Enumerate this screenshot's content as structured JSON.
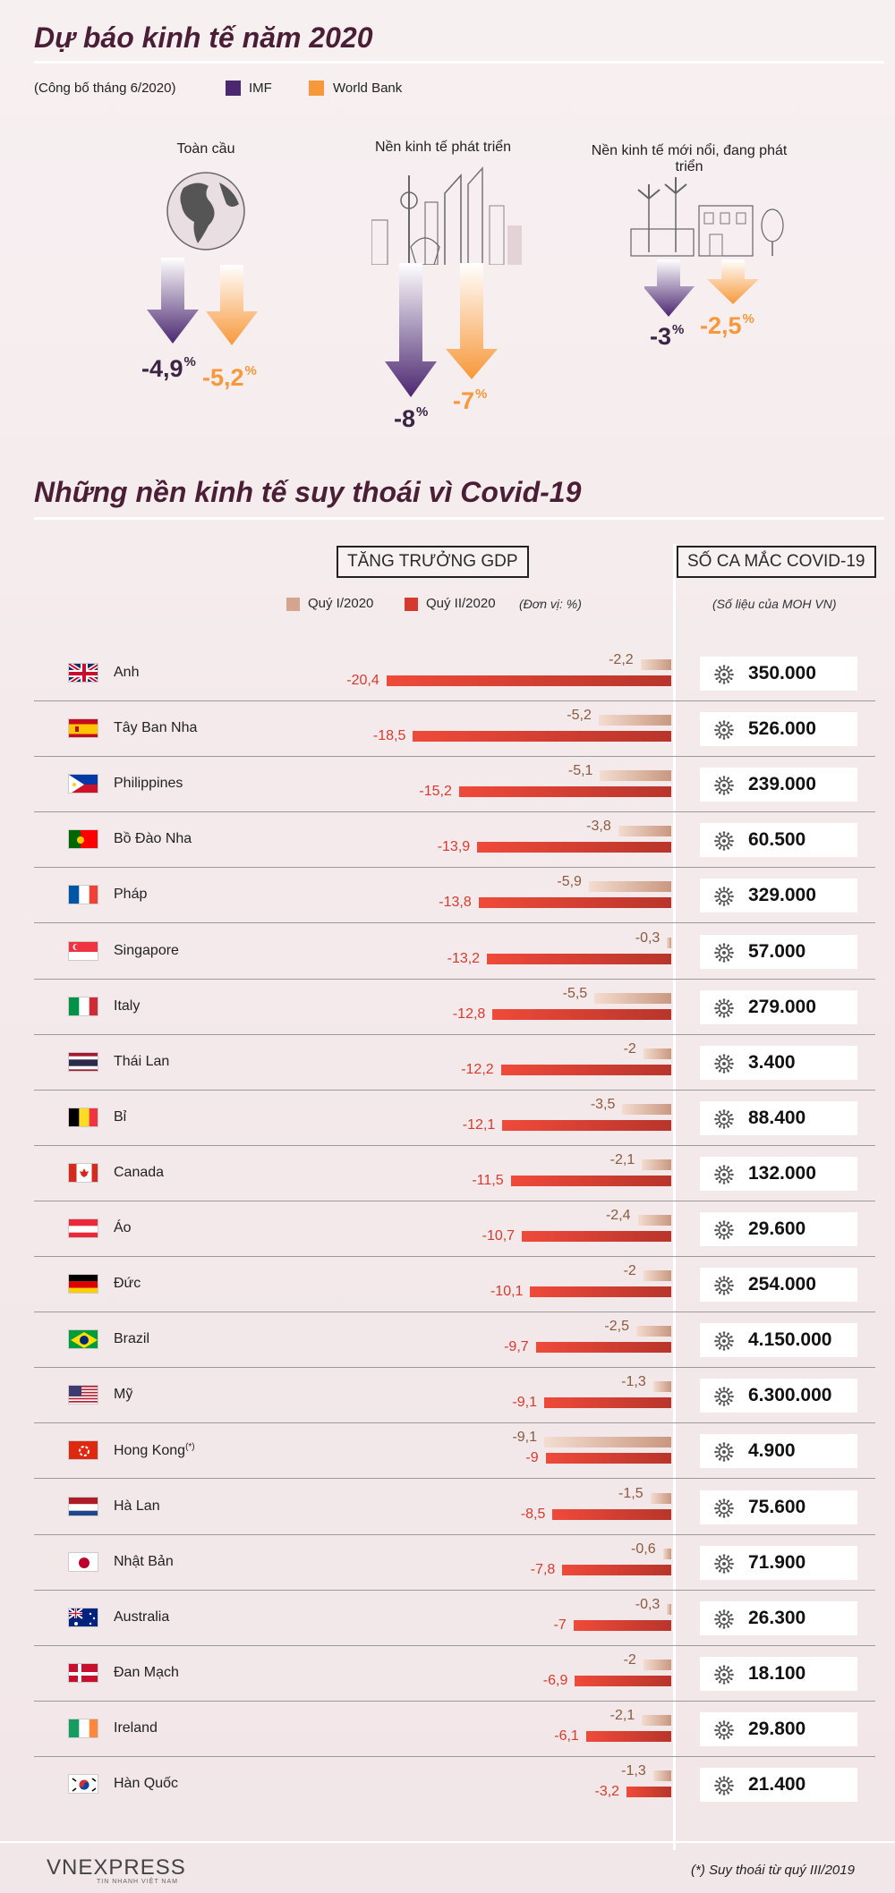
{
  "header": {
    "title": "Dự báo kinh tế năm 2020",
    "published": "(Công bố tháng 6/2020)",
    "legend_imf": "IMF",
    "legend_wb": "World Bank"
  },
  "colors": {
    "imf": "#4b2770",
    "world_bank": "#f7983a",
    "q1": "#d3a58d",
    "q2": "#d63a2d"
  },
  "forecast": [
    {
      "label": "Toàn cầu",
      "imf": "-4,9",
      "wb": "-5,2"
    },
    {
      "label": "Nền kinh tế phát triển",
      "imf": "-8",
      "wb": "-7"
    },
    {
      "label": "Nền kinh tế mới nổi, đang phát triển",
      "imf": "-3",
      "wb": "-2,5"
    }
  ],
  "percent": "%",
  "section2": {
    "title": "Những nền kinh tế suy thoái vì Covid-19",
    "gdp_header": "TĂNG TRƯỞNG GDP",
    "covid_header": "SỐ CA MẮC COVID-19",
    "legend_q1": "Quý I/2020",
    "legend_q2": "Quý II/2020",
    "unit": "(Đơn vị: %)",
    "source": "(Số liệu của MOH VN)"
  },
  "chart_data": {
    "type": "bar",
    "series_names": [
      "Quý I/2020",
      "Quý II/2020"
    ],
    "rows": [
      {
        "country": "Anh",
        "q1": -2.2,
        "q2": -20.4,
        "q1_label": "-2,2",
        "q2_label": "-20,4",
        "cases": "350.000"
      },
      {
        "country": "Tây Ban Nha",
        "q1": -5.2,
        "q2": -18.5,
        "q1_label": "-5,2",
        "q2_label": "-18,5",
        "cases": "526.000"
      },
      {
        "country": "Philippines",
        "q1": -5.1,
        "q2": -15.2,
        "q1_label": "-5,1",
        "q2_label": "-15,2",
        "cases": "239.000"
      },
      {
        "country": "Bồ Đào Nha",
        "q1": -3.8,
        "q2": -13.9,
        "q1_label": "-3,8",
        "q2_label": "-13,9",
        "cases": "60.500"
      },
      {
        "country": "Pháp",
        "q1": -5.9,
        "q2": -13.8,
        "q1_label": "-5,9",
        "q2_label": "-13,8",
        "cases": "329.000"
      },
      {
        "country": "Singapore",
        "q1": -0.3,
        "q2": -13.2,
        "q1_label": "-0,3",
        "q2_label": "-13,2",
        "cases": "57.000"
      },
      {
        "country": "Italy",
        "q1": -5.5,
        "q2": -12.8,
        "q1_label": "-5,5",
        "q2_label": "-12,8",
        "cases": "279.000"
      },
      {
        "country": "Thái Lan",
        "q1": -2,
        "q2": -12.2,
        "q1_label": "-2",
        "q2_label": "-12,2",
        "cases": "3.400"
      },
      {
        "country": "Bỉ",
        "q1": -3.5,
        "q2": -12.1,
        "q1_label": "-3,5",
        "q2_label": "-12,1",
        "cases": "88.400"
      },
      {
        "country": "Canada",
        "q1": -2.1,
        "q2": -11.5,
        "q1_label": "-2,1",
        "q2_label": "-11,5",
        "cases": "132.000"
      },
      {
        "country": "Áo",
        "q1": -2.4,
        "q2": -10.7,
        "q1_label": "-2,4",
        "q2_label": "-10,7",
        "cases": "29.600"
      },
      {
        "country": "Đức",
        "q1": -2,
        "q2": -10.1,
        "q1_label": "-2",
        "q2_label": "-10,1",
        "cases": "254.000"
      },
      {
        "country": "Brazil",
        "q1": -2.5,
        "q2": -9.7,
        "q1_label": "-2,5",
        "q2_label": "-9,7",
        "cases": "4.150.000"
      },
      {
        "country": "Mỹ",
        "q1": -1.3,
        "q2": -9.1,
        "q1_label": "-1,3",
        "q2_label": "-9,1",
        "cases": "6.300.000"
      },
      {
        "country": "Hong Kong",
        "note": "(*)",
        "q1": -9.1,
        "q2": -9,
        "q1_label": "-9,1",
        "q2_label": "-9",
        "cases": "4.900"
      },
      {
        "country": "Hà Lan",
        "q1": -1.5,
        "q2": -8.5,
        "q1_label": "-1,5",
        "q2_label": "-8,5",
        "cases": "75.600"
      },
      {
        "country": "Nhật Bản",
        "q1": -0.6,
        "q2": -7.8,
        "q1_label": "-0,6",
        "q2_label": "-7,8",
        "cases": "71.900"
      },
      {
        "country": "Australia",
        "q1": -0.3,
        "q2": -7,
        "q1_label": "-0,3",
        "q2_label": "-7",
        "cases": "26.300"
      },
      {
        "country": "Đan Mạch",
        "q1": -2,
        "q2": -6.9,
        "q1_label": "-2",
        "q2_label": "-6,9",
        "cases": "18.100"
      },
      {
        "country": "Ireland",
        "q1": -2.1,
        "q2": -6.1,
        "q1_label": "-2,1",
        "q2_label": "-6,1",
        "cases": "29.800"
      },
      {
        "country": "Hàn Quốc",
        "q1": -1.3,
        "q2": -3.2,
        "q1_label": "-1,3",
        "q2_label": "-3,2",
        "cases": "21.400"
      }
    ]
  },
  "footer": {
    "logo_text": "VNEXPRESS",
    "logo_sub": "TIN NHANH VIỆT NAM",
    "footnote": "(*) Suy thoái từ quý III/2019"
  }
}
